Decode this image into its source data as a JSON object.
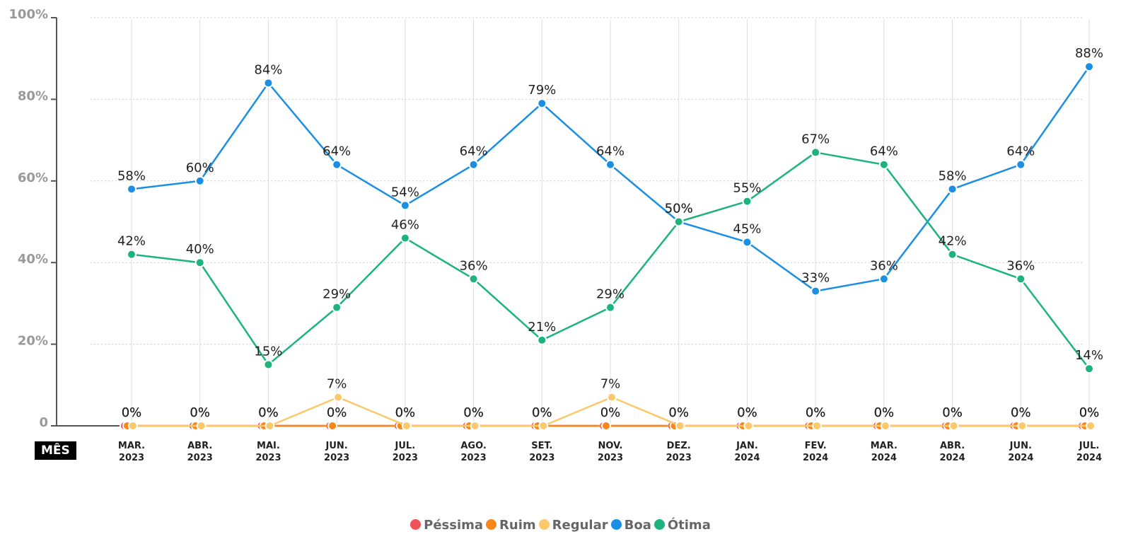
{
  "chart_data": {
    "type": "line",
    "x_label": "MÊS",
    "categories": [
      "MAR.\n2023",
      "ABR.\n2023",
      "MAI.\n2023",
      "JUN.\n2023",
      "JUL.\n2023",
      "AGO.\n2023",
      "SET.\n2023",
      "NOV.\n2023",
      "DEZ.\n2023",
      "JAN.\n2024",
      "FEV.\n2024",
      "MAR.\n2024",
      "ABR.\n2024",
      "JUN.\n2024",
      "JUL.\n2024"
    ],
    "series": [
      {
        "name": "Péssima",
        "color": "#f0525a",
        "values": [
          0,
          0,
          0,
          0,
          0,
          0,
          0,
          0,
          0,
          0,
          0,
          0,
          0,
          0,
          0
        ],
        "value_labels": [
          "0%",
          "0%",
          "0%",
          "0%",
          "0%",
          "0%",
          "0%",
          "0%",
          "0%",
          "0%",
          "0%",
          "0%",
          "0%",
          "0%",
          "0%"
        ]
      },
      {
        "name": "Ruim",
        "color": "#f7861b",
        "values": [
          0,
          0,
          0,
          0,
          0,
          0,
          0,
          0,
          0,
          0,
          0,
          0,
          0,
          0,
          0
        ],
        "value_labels": [
          "0%",
          "0%",
          "0%",
          "0%",
          "0%",
          "0%",
          "0%",
          "0%",
          "0%",
          "0%",
          "0%",
          "0%",
          "0%",
          "0%",
          "0%"
        ]
      },
      {
        "name": "Regular",
        "color": "#fbc96a",
        "values": [
          0,
          0,
          0,
          7,
          0,
          0,
          0,
          7,
          0,
          0,
          0,
          0,
          0,
          0,
          0
        ],
        "value_labels": [
          "0%",
          "0%",
          "0%",
          "7%",
          "0%",
          "0%",
          "0%",
          "7%",
          "0%",
          "0%",
          "0%",
          "0%",
          "0%",
          "0%",
          "0%"
        ]
      },
      {
        "name": "Boa",
        "color": "#1a8fe3",
        "values": [
          58,
          60,
          84,
          64,
          54,
          64,
          79,
          64,
          50,
          45,
          33,
          36,
          58,
          64,
          88
        ],
        "value_labels": [
          "58%",
          "60%",
          "84%",
          "64%",
          "54%",
          "64%",
          "79%",
          "64%",
          "50%",
          "45%",
          "33%",
          "36%",
          "58%",
          "64%",
          "88%"
        ]
      },
      {
        "name": "Ótima",
        "color": "#1cb47c",
        "values": [
          42,
          40,
          15,
          29,
          46,
          36,
          21,
          29,
          50,
          55,
          67,
          64,
          42,
          36,
          14
        ],
        "value_labels": [
          "42%",
          "40%",
          "15%",
          "29%",
          "46%",
          "36%",
          "21%",
          "29%",
          "50%",
          "55%",
          "67%",
          "64%",
          "42%",
          "36%",
          "14%"
        ]
      }
    ],
    "ylim": [
      0,
      100
    ],
    "yticks": [
      0,
      {
        "value": 20,
        "label": "20%"
      },
      {
        "value": 40,
        "label": "40%"
      },
      {
        "value": 60,
        "label": "60%"
      },
      {
        "value": 80,
        "label": "80%"
      },
      {
        "value": 100,
        "label": "100%"
      }
    ],
    "grid": true,
    "legend": "bottom"
  }
}
